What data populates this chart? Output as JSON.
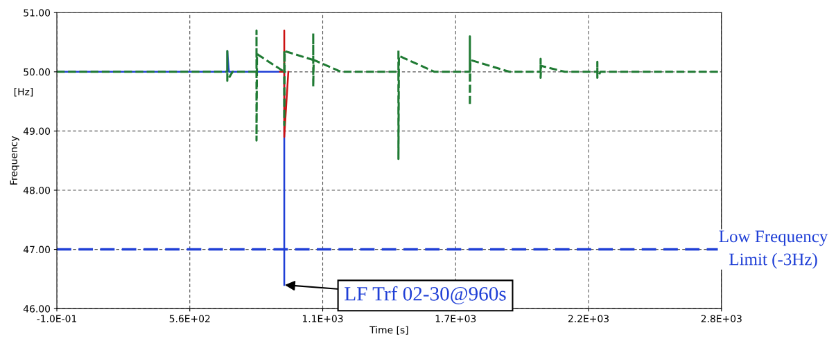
{
  "chart_data": {
    "type": "line",
    "xlabel": "Time [s]",
    "ylabel": "Frequency",
    "xlim": [
      -0.1,
      2799.9
    ],
    "xticks": [
      {
        "value": -0.1,
        "label": "-1.0E-01"
      },
      {
        "value": 559.9,
        "label": "5.6E+02"
      },
      {
        "value": 1119.9,
        "label": "1.1E+03"
      },
      {
        "value": 1679.9,
        "label": "1.7E+03"
      },
      {
        "value": 2239.9,
        "label": "2.2E+03"
      },
      {
        "value": 2799.9,
        "label": "2.8E+03"
      }
    ],
    "ylim": [
      46,
      51
    ],
    "yticks": [
      {
        "value": 46,
        "label": "46.00"
      },
      {
        "value": 47,
        "label": "47.00"
      },
      {
        "value": 48,
        "label": "48.00"
      },
      {
        "value": 49,
        "label": "49.00"
      },
      {
        "value": 50,
        "label": "50.00"
      },
      {
        "value": 51,
        "label": "51.00"
      }
    ],
    "grid": true,
    "marker": "none",
    "series": [
      {
        "color": "#1f3fd6",
        "line_style": "solid",
        "x": [
          0,
          718,
          718,
          725,
          958,
          958
        ],
        "values": [
          50,
          50,
          50.35,
          50,
          50,
          46.4
        ]
      },
      {
        "color": "#cc1111",
        "line_style": "solid",
        "x": [
          940,
          958,
          958,
          958,
          975
        ],
        "values": [
          50,
          50,
          50.7,
          48.9,
          50
        ]
      },
      {
        "color": "#1f7a33",
        "line_style": "dashed",
        "x": [
          0,
          718,
          718,
          718,
          740,
          841,
          841,
          841,
          843,
          958,
          958,
          958,
          960,
          1080,
          1080,
          1080,
          1082,
          1197,
          1439,
          1439,
          1439,
          1441,
          1591,
          1740,
          1740,
          1740,
          1742,
          1907,
          2038,
          2038,
          2038,
          2040,
          2140,
          2277,
          2277,
          2277,
          2290,
          2799.9
        ],
        "values": [
          50,
          50,
          50.35,
          49.85,
          50,
          50,
          50.7,
          48.84,
          50.3,
          50,
          50.35,
          49.1,
          50.35,
          50.2,
          50.65,
          49.75,
          50.2,
          50,
          50,
          50.38,
          48.53,
          50.27,
          50,
          50,
          50.6,
          49.43,
          50.2,
          50,
          50,
          50.22,
          49.9,
          50.1,
          50,
          50,
          50.17,
          49.9,
          50,
          50
        ]
      }
    ],
    "ref_lines": [
      {
        "axis": "y",
        "value": 47,
        "label": "Low Frequency\nLimit (-3Hz)",
        "color": "#1f3fd6",
        "line_style": "dashed"
      }
    ],
    "annotations": [
      "[Hz]",
      {
        "text": "LF Trf 02-30@960s",
        "x": 960,
        "y": 46.4
      }
    ]
  }
}
